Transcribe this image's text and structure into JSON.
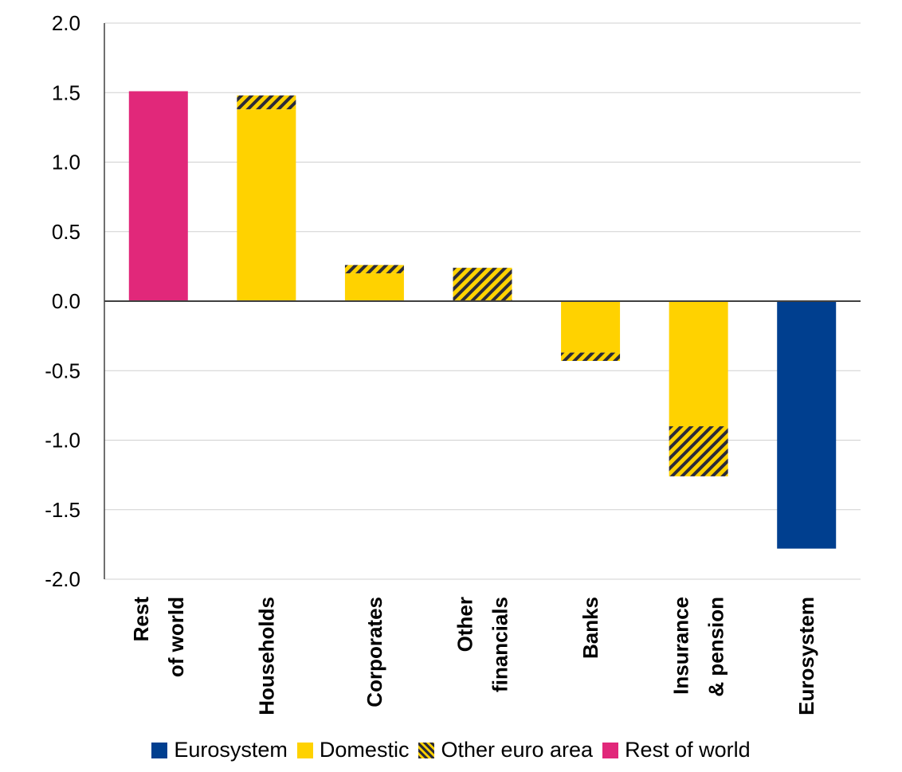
{
  "chart_data": {
    "type": "bar",
    "stacked": true,
    "categories": [
      [
        "Rest",
        "of world"
      ],
      [
        "Households"
      ],
      [
        "Corporates"
      ],
      [
        "Other",
        "financials"
      ],
      [
        "Banks"
      ],
      [
        "Insurance",
        "& pension"
      ],
      [
        "Eurosystem"
      ]
    ],
    "series": [
      {
        "name": "Eurosystem",
        "color": "#003f8f",
        "pattern": "solid",
        "values": [
          0,
          0,
          0,
          0,
          0,
          0,
          -1.78
        ]
      },
      {
        "name": "Domestic",
        "color": "#ffd200",
        "pattern": "solid",
        "values": [
          0,
          1.38,
          0.2,
          0,
          -0.37,
          -0.9,
          0
        ]
      },
      {
        "name": "Other euro area",
        "color": "#ffd200",
        "pattern": "hatched",
        "values": [
          0,
          0.1,
          0.06,
          0.24,
          -0.06,
          -0.36,
          0
        ]
      },
      {
        "name": "Rest of world",
        "color": "#e1287a",
        "pattern": "solid",
        "values": [
          1.51,
          0,
          0,
          0,
          0,
          0,
          0
        ]
      }
    ],
    "ylim": [
      -2.0,
      2.0
    ],
    "yticks": [
      "2.0",
      "1.5",
      "1.0",
      "0.5",
      "0.0",
      "-0.5",
      "-1.0",
      "-1.5",
      "-2.0"
    ],
    "grid": true,
    "legend_position": "bottom",
    "title": "",
    "xlabel": "",
    "ylabel": ""
  }
}
